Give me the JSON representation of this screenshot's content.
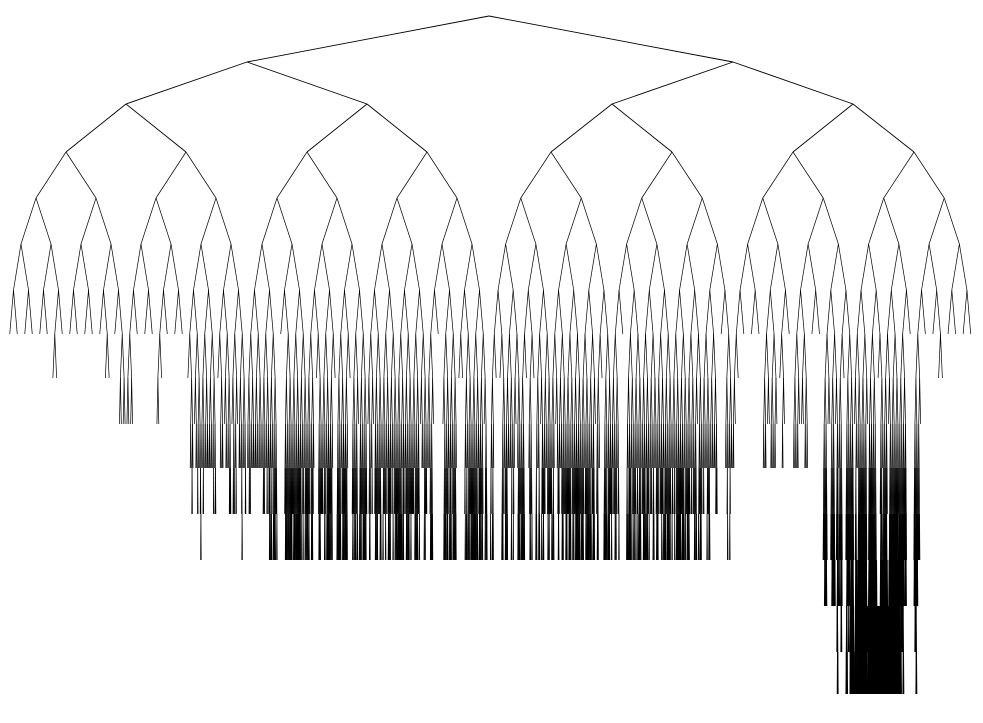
{
  "tree": {
    "kind": "binary-tree",
    "root_degree": 2,
    "full_levels": 7,
    "total_levels": 15,
    "edge_color": "#000000",
    "background_color": "#ffffff"
  }
}
